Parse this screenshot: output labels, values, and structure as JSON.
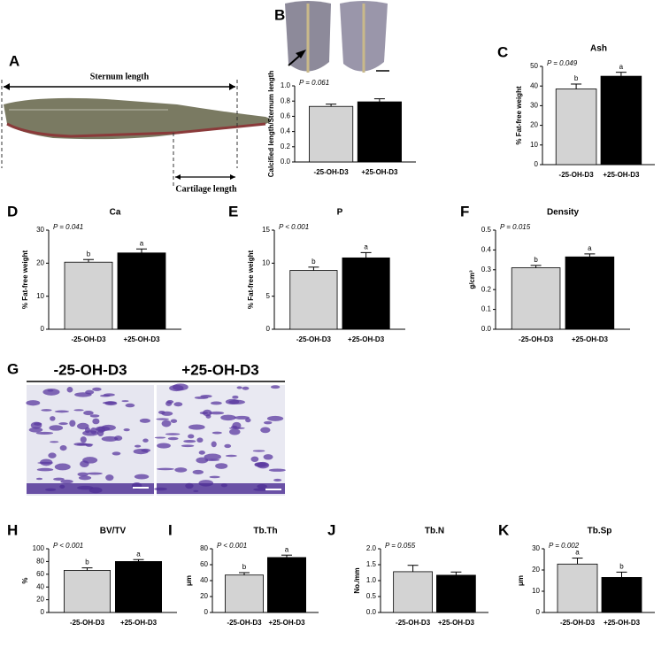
{
  "figure": {
    "panel_letters": [
      "A",
      "B",
      "C",
      "D",
      "E",
      "F",
      "G",
      "H",
      "I",
      "J",
      "K"
    ],
    "sternum_length": "Sternum length",
    "cartilage_length": "Cartilage length",
    "histology_labels": [
      "-25-OH-D3",
      "+25-OH-D3"
    ]
  },
  "chart_data": [
    {
      "type": "bar",
      "ylabel": "Calcified length/Sternum length",
      "p_text": "P = 0.061",
      "categories": [
        "-25-OH-D3",
        "+25-OH-D3"
      ],
      "values": [
        0.73,
        0.79
      ],
      "errors": [
        0.03,
        0.04
      ],
      "colors": [
        "#d3d3d3",
        "#000000"
      ],
      "ylim": [
        0,
        1.0
      ],
      "yticks": [
        {
          "value": 0,
          "label": "0.0"
        },
        0.2,
        0.4,
        0.6,
        0.8,
        {
          "value": 1.0,
          "label": "1.0"
        }
      ]
    },
    {
      "type": "bar",
      "title": "Ash",
      "ylabel": "% Fat-free weight",
      "p_text": "P = 0.049",
      "categories": [
        "-25-OH-D3",
        "+25-OH-D3"
      ],
      "values": [
        38.5,
        45
      ],
      "errors": [
        2.5,
        2
      ],
      "letters": [
        "b",
        "a"
      ],
      "colors": [
        "#d3d3d3",
        "#000000"
      ],
      "ylim": [
        0,
        50
      ],
      "yticks": [
        0,
        10,
        20,
        30,
        40,
        50
      ]
    },
    {
      "type": "bar",
      "title": "Ca",
      "ylabel": "% Fat-free weight",
      "p_text": "P = 0.041",
      "categories": [
        "-25-OH-D3",
        "+25-OH-D3"
      ],
      "values": [
        20.3,
        23.1
      ],
      "errors": [
        0.8,
        1.2
      ],
      "letters": [
        "b",
        "a"
      ],
      "colors": [
        "#d3d3d3",
        "#000000"
      ],
      "ylim": [
        0,
        30
      ],
      "yticks": [
        0,
        10,
        20,
        30
      ]
    },
    {
      "type": "bar",
      "title": "P",
      "ylabel": "% Fat-free weight",
      "p_text": "P < 0.001",
      "categories": [
        "-25-OH-D3",
        "+25-OH-D3"
      ],
      "values": [
        8.9,
        10.8
      ],
      "errors": [
        0.5,
        0.8
      ],
      "letters": [
        "b",
        "a"
      ],
      "colors": [
        "#d3d3d3",
        "#000000"
      ],
      "ylim": [
        0,
        15
      ],
      "yticks": [
        0,
        5,
        10,
        15
      ]
    },
    {
      "type": "bar",
      "title": "Density",
      "ylabel": "g/cm³",
      "p_text": "P = 0.015",
      "categories": [
        "-25-OH-D3",
        "+25-OH-D3"
      ],
      "values": [
        0.31,
        0.365
      ],
      "errors": [
        0.012,
        0.015
      ],
      "letters": [
        "b",
        "a"
      ],
      "colors": [
        "#d3d3d3",
        "#000000"
      ],
      "ylim": [
        0,
        0.5
      ],
      "yticks": [
        {
          "value": 0,
          "label": "0.0"
        },
        0.1,
        0.2,
        0.3,
        0.4,
        0.5
      ]
    },
    {
      "type": "bar",
      "title": "BV/TV",
      "ylabel": "%",
      "p_text": "P < 0.001",
      "categories": [
        "-25-OH-D3",
        "+25-OH-D3"
      ],
      "values": [
        66,
        80
      ],
      "errors": [
        4,
        3
      ],
      "letters": [
        "b",
        "a"
      ],
      "colors": [
        "#d3d3d3",
        "#000000"
      ],
      "ylim": [
        0,
        100
      ],
      "yticks": [
        0,
        20,
        40,
        60,
        80,
        100
      ]
    },
    {
      "type": "bar",
      "title": "Tb.Th",
      "ylabel": "μm",
      "p_text": "P < 0.001",
      "categories": [
        "-25-OH-D3",
        "+25-OH-D3"
      ],
      "values": [
        47,
        69
      ],
      "errors": [
        3,
        3
      ],
      "letters": [
        "b",
        "a"
      ],
      "colors": [
        "#d3d3d3",
        "#000000"
      ],
      "ylim": [
        0,
        80
      ],
      "yticks": [
        0,
        20,
        40,
        60,
        80
      ]
    },
    {
      "type": "bar",
      "title": "Tb.N",
      "ylabel": "No./mm",
      "p_text": "P = 0.055",
      "categories": [
        "-25-OH-D3",
        "+25-OH-D3"
      ],
      "values": [
        1.28,
        1.17
      ],
      "errors": [
        0.2,
        0.1
      ],
      "colors": [
        "#d3d3d3",
        "#000000"
      ],
      "ylim": [
        0,
        2.0
      ],
      "yticks": [
        {
          "value": 0,
          "label": "0.0"
        },
        0.5,
        {
          "value": 1.0,
          "label": "1.0"
        },
        1.5,
        {
          "value": 2.0,
          "label": "2.0"
        }
      ]
    },
    {
      "type": "bar",
      "title": "Tb.Sp",
      "ylabel": "μm",
      "p_text": "P = 0.002",
      "categories": [
        "-25-OH-D3",
        "+25-OH-D3"
      ],
      "values": [
        22.8,
        16.5
      ],
      "errors": [
        2.8,
        2.5
      ],
      "letters": [
        "a",
        "b"
      ],
      "colors": [
        "#d3d3d3",
        "#000000"
      ],
      "ylim": [
        0,
        30
      ],
      "yticks": [
        0,
        10,
        20,
        30
      ]
    }
  ]
}
